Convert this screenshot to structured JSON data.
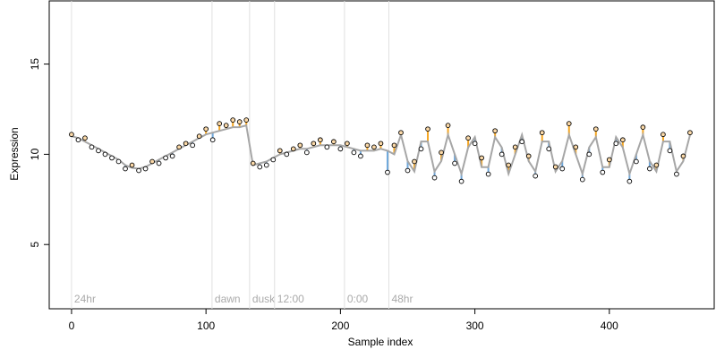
{
  "chart_data": {
    "type": "scatter",
    "xlabel": "Sample index",
    "ylabel": "Expression",
    "xlim": [
      -16.6,
      478
    ],
    "ylim": [
      1.44,
      18.5
    ],
    "xticks": [
      0,
      100,
      200,
      300,
      400
    ],
    "yticks": [
      5,
      10,
      15
    ],
    "x": [
      0,
      5,
      10,
      15,
      20,
      25,
      30,
      35,
      40,
      45,
      50,
      55,
      60,
      65,
      70,
      75,
      80,
      85,
      90,
      95,
      100,
      105,
      110,
      115,
      120,
      125,
      130,
      135,
      140,
      145,
      150,
      155,
      160,
      165,
      170,
      175,
      180,
      185,
      190,
      195,
      200,
      205,
      210,
      215,
      220,
      225,
      230,
      235,
      240,
      245,
      250,
      255,
      260,
      265,
      270,
      275,
      280,
      285,
      290,
      295,
      300,
      305,
      310,
      315,
      320,
      325,
      330,
      335,
      340,
      345,
      350,
      355,
      360,
      365,
      370,
      375,
      380,
      385,
      390,
      395,
      400,
      405,
      410,
      415,
      420,
      425,
      430,
      435,
      440,
      445,
      450,
      455,
      460
    ],
    "values": [
      11.1,
      10.8,
      10.9,
      10.4,
      10.2,
      10.0,
      9.8,
      9.6,
      9.2,
      9.4,
      9.1,
      9.2,
      9.6,
      9.5,
      9.8,
      9.9,
      10.4,
      10.6,
      10.5,
      11.0,
      11.4,
      10.8,
      11.7,
      11.6,
      11.9,
      11.8,
      11.9,
      9.5,
      9.3,
      9.4,
      9.7,
      10.2,
      10.0,
      10.3,
      10.5,
      10.1,
      10.6,
      10.8,
      10.4,
      10.7,
      10.3,
      10.6,
      10.1,
      9.9,
      10.5,
      10.4,
      10.6,
      9.0,
      10.5,
      11.2,
      9.1,
      9.6,
      10.3,
      11.4,
      8.7,
      10.1,
      11.6,
      9.5,
      8.5,
      10.9,
      10.6,
      9.8,
      8.9,
      11.3,
      10.0,
      9.4,
      10.4,
      10.7,
      9.9,
      8.8,
      11.2,
      10.3,
      9.3,
      9.2,
      11.7,
      10.4,
      8.6,
      10.0,
      11.4,
      9.0,
      9.7,
      10.6,
      10.8,
      8.5,
      9.6,
      11.5,
      9.2,
      9.4,
      11.1,
      10.2,
      8.9,
      9.9,
      11.2
    ],
    "fit": [
      11.0,
      10.9,
      10.7,
      10.5,
      10.3,
      10.1,
      9.9,
      9.7,
      9.4,
      9.25,
      9.2,
      9.3,
      9.5,
      9.7,
      9.9,
      10.1,
      10.3,
      10.5,
      10.7,
      10.9,
      11.1,
      11.2,
      11.3,
      11.4,
      11.5,
      11.5,
      11.6,
      9.4,
      9.5,
      9.6,
      9.8,
      10.0,
      10.1,
      10.2,
      10.3,
      10.3,
      10.4,
      10.5,
      10.5,
      10.5,
      10.5,
      10.4,
      10.3,
      10.2,
      10.2,
      10.2,
      10.3,
      10.2,
      10.0,
      11.08,
      9.62,
      9.05,
      10.71,
      10.71,
      9.05,
      9.62,
      11.08,
      10.0,
      8.92,
      10.38,
      10.95,
      9.29,
      9.29,
      10.95,
      10.38,
      8.92,
      10.0,
      11.08,
      9.62,
      9.05,
      10.71,
      10.71,
      9.05,
      9.62,
      11.08,
      10.0,
      8.92,
      10.38,
      10.95,
      9.29,
      9.29,
      10.95,
      10.38,
      8.92,
      10.0,
      11.08,
      9.62,
      9.05,
      10.71,
      10.71,
      9.05,
      9.62,
      11.08
    ],
    "fit_color": "#a6a6a6",
    "above_color": "#f5a623",
    "below_color": "#6fa8dc",
    "point_fill": "#fbd9a8",
    "markers": [
      {
        "x": 0,
        "label": "24hr"
      },
      {
        "x": 104.5,
        "label": "dawn"
      },
      {
        "x": 132.4,
        "label": "dusk"
      },
      {
        "x": 151,
        "label": "12:00"
      },
      {
        "x": 203,
        "label": "0:00"
      },
      {
        "x": 236,
        "label": "48hr"
      }
    ]
  }
}
